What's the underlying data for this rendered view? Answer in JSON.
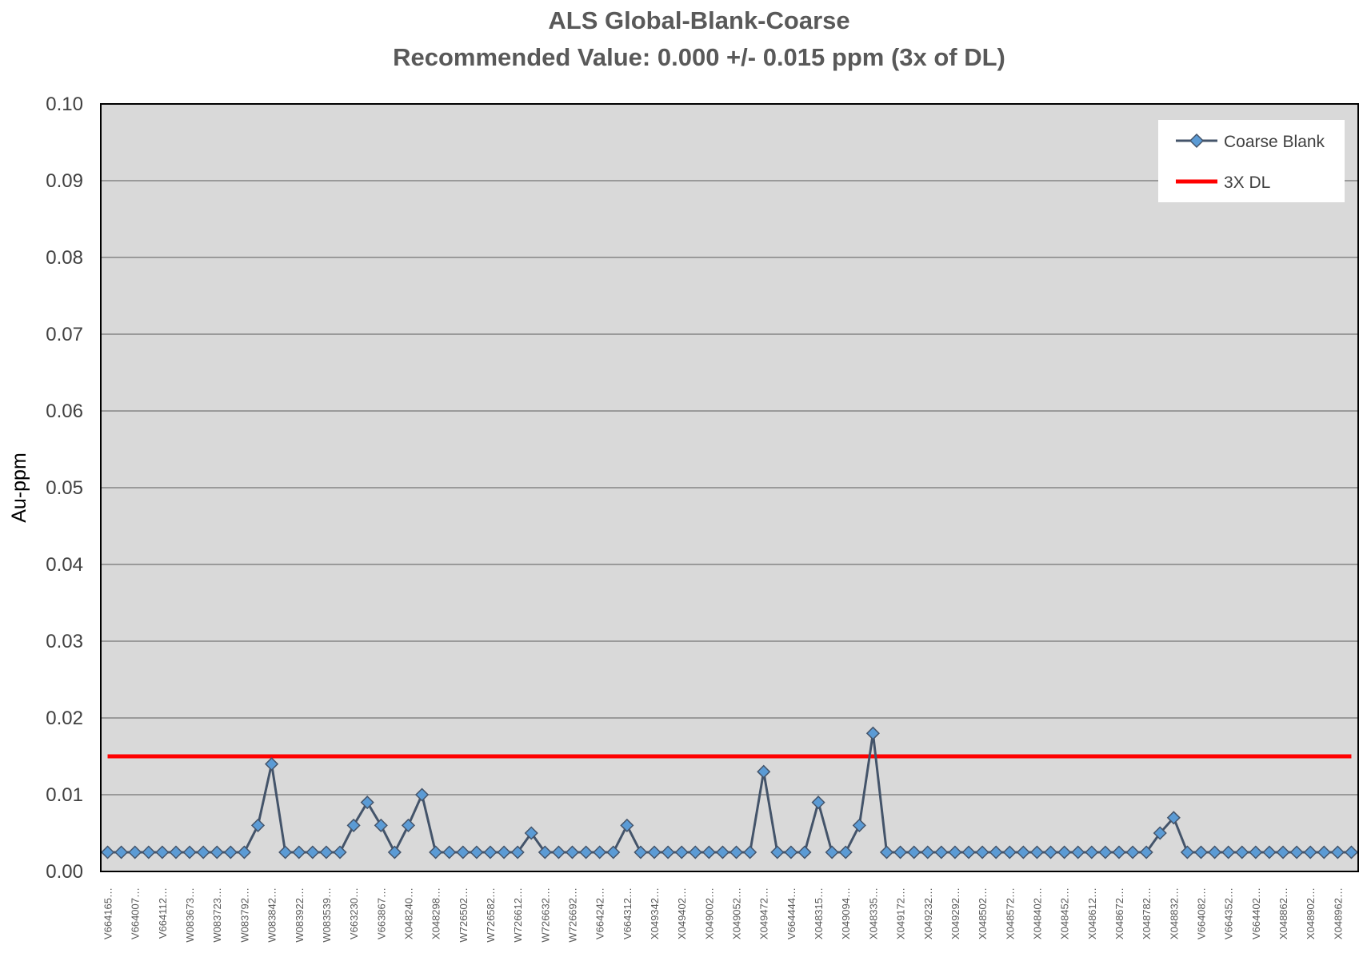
{
  "chart_data": {
    "type": "line",
    "title": "ALS Global-Blank-Coarse",
    "subtitle": "Recommended Value: 0.000 +/- 0.015 ppm (3x of DL)",
    "xlabel": "",
    "ylabel": "Au-ppm",
    "ylim": [
      0,
      0.1
    ],
    "yticks": [
      "0.00",
      "0.01",
      "0.02",
      "0.03",
      "0.04",
      "0.05",
      "0.06",
      "0.07",
      "0.08",
      "0.09",
      "0.10"
    ],
    "grid": true,
    "legend_placement": "top-right",
    "x_tick_labels_every": 2,
    "x_tick_labels": [
      "V664165…",
      "V664007…",
      "V664112…",
      "W083673…",
      "W083723…",
      "W083792…",
      "W083842…",
      "W083922…",
      "W083539…",
      "V663230…",
      "V663867…",
      "X048240…",
      "X048298…",
      "W726502…",
      "W726582…",
      "W726612…",
      "W726632…",
      "W726692…",
      "V664242…",
      "V664312…",
      "X049342…",
      "X049402…",
      "X049002…",
      "X049052…",
      "X049472…",
      "V664444…",
      "X048315…",
      "X049094…",
      "X048335…",
      "X049172…",
      "X049232…",
      "X049292…",
      "X048502…",
      "X048572…",
      "X048402…",
      "X048452…",
      "X048612…",
      "X048672…",
      "X048782…",
      "X048832…",
      "V664082…",
      "V664352…",
      "V664402…",
      "X048862…",
      "X048902…",
      "X048962…"
    ],
    "series": [
      {
        "name": "Coarse Blank",
        "color": "#44546a",
        "marker_color": "#5b9bd5",
        "marker": "diamond",
        "values": [
          0.0025,
          0.0025,
          0.0025,
          0.0025,
          0.0025,
          0.0025,
          0.0025,
          0.0025,
          0.0025,
          0.0025,
          0.0025,
          0.006,
          0.014,
          0.0025,
          0.0025,
          0.0025,
          0.0025,
          0.0025,
          0.006,
          0.009,
          0.006,
          0.0025,
          0.006,
          0.01,
          0.0025,
          0.0025,
          0.0025,
          0.0025,
          0.0025,
          0.0025,
          0.0025,
          0.005,
          0.0025,
          0.0025,
          0.0025,
          0.0025,
          0.0025,
          0.0025,
          0.006,
          0.0025,
          0.0025,
          0.0025,
          0.0025,
          0.0025,
          0.0025,
          0.0025,
          0.0025,
          0.0025,
          0.013,
          0.0025,
          0.0025,
          0.0025,
          0.009,
          0.0025,
          0.0025,
          0.006,
          0.018,
          0.0025,
          0.0025,
          0.0025,
          0.0025,
          0.0025,
          0.0025,
          0.0025,
          0.0025,
          0.0025,
          0.0025,
          0.0025,
          0.0025,
          0.0025,
          0.0025,
          0.0025,
          0.0025,
          0.0025,
          0.0025,
          0.0025,
          0.0025,
          0.005,
          0.007,
          0.0025,
          0.0025,
          0.0025,
          0.0025,
          0.0025,
          0.0025,
          0.0025,
          0.0025,
          0.0025,
          0.0025,
          0.0025,
          0.0025,
          0.0025
        ]
      },
      {
        "name": "3X DL",
        "color": "#ff0000",
        "constant": 0.015
      }
    ],
    "plot_background": "#d9d9d9"
  }
}
